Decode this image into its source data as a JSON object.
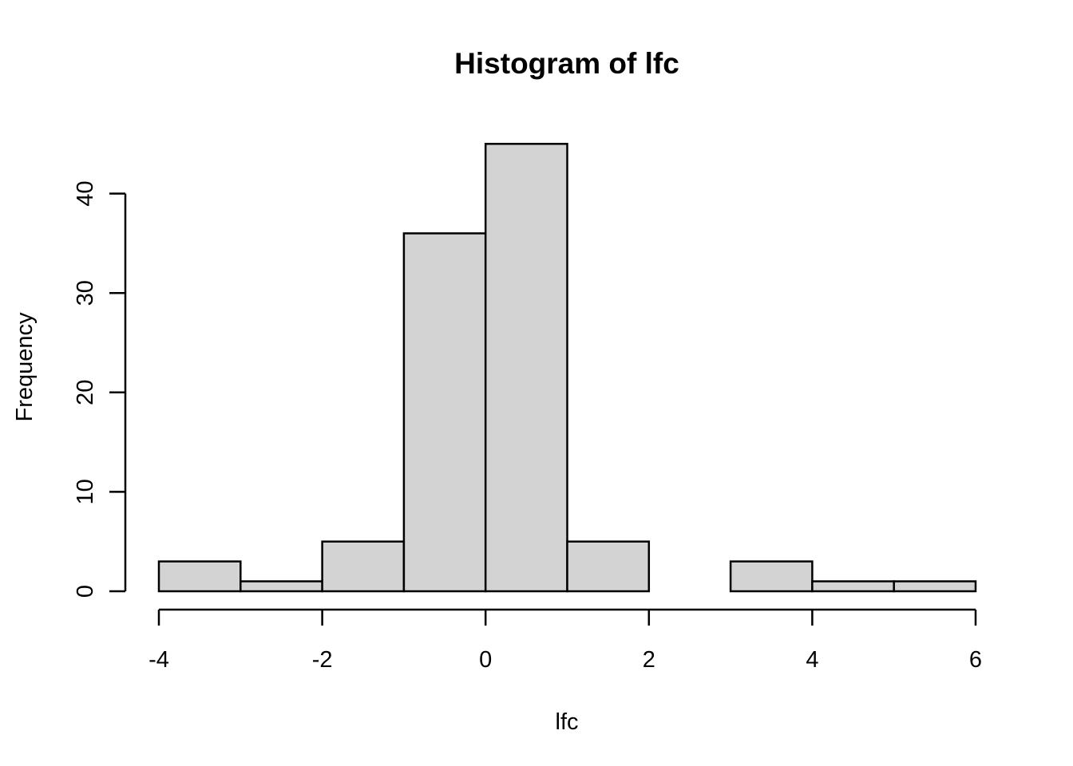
{
  "chart_data": {
    "type": "bar",
    "title": "Histogram of lfc",
    "xlabel": "lfc",
    "ylabel": "Frequency",
    "bin_edges": [
      -4,
      -3,
      -2,
      -1,
      0,
      1,
      2,
      3,
      4,
      5,
      6
    ],
    "values": [
      3,
      1,
      5,
      36,
      45,
      5,
      0,
      3,
      1,
      1
    ],
    "x_ticks": [
      -4,
      -2,
      0,
      2,
      4,
      6
    ],
    "y_ticks": [
      0,
      10,
      20,
      30,
      40
    ],
    "xlim": [
      -4,
      6
    ],
    "ylim": [
      0,
      45
    ],
    "grid": false,
    "bar_fill": "#d3d3d3",
    "bar_stroke": "#000000"
  }
}
